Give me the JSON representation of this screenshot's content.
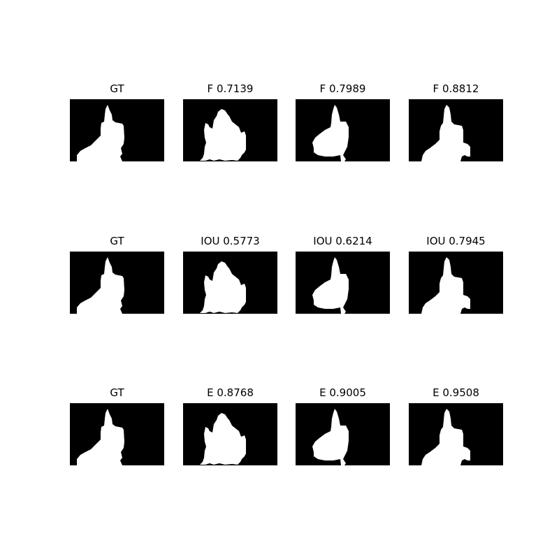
{
  "figure": {
    "rows": [
      {
        "panels": [
          {
            "title": "GT",
            "mask": "gt"
          },
          {
            "title": "F 0.7139",
            "mask": "pred_a"
          },
          {
            "title": "F 0.7989",
            "mask": "pred_b"
          },
          {
            "title": "F 0.8812",
            "mask": "pred_c"
          }
        ]
      },
      {
        "panels": [
          {
            "title": "GT",
            "mask": "gt"
          },
          {
            "title": "IOU 0.5773",
            "mask": "pred_a"
          },
          {
            "title": "IOU 0.6214",
            "mask": "pred_b"
          },
          {
            "title": "IOU 0.7945",
            "mask": "pred_c"
          }
        ]
      },
      {
        "panels": [
          {
            "title": "GT",
            "mask": "gt"
          },
          {
            "title": "E 0.8768",
            "mask": "pred_a"
          },
          {
            "title": "E 0.9005",
            "mask": "pred_b"
          },
          {
            "title": "E 0.9508",
            "mask": "pred_c"
          }
        ]
      }
    ]
  },
  "colors": {
    "background": "#000000",
    "foreground": "#ffffff"
  }
}
